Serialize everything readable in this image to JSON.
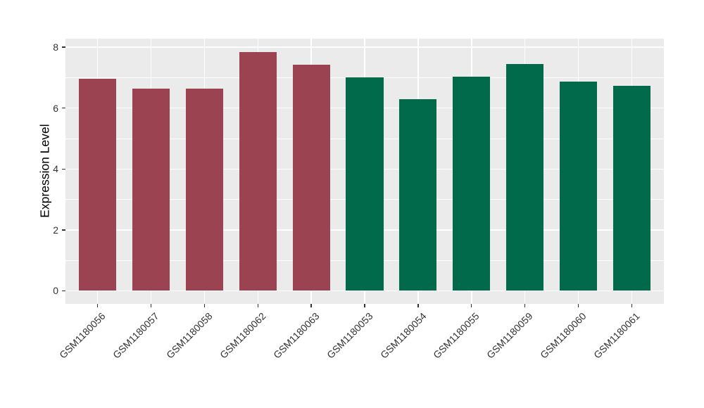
{
  "chart_data": {
    "type": "bar",
    "title": "",
    "xlabel": "",
    "ylabel": "Expression Level",
    "categories": [
      "GSM1180056",
      "GSM1180057",
      "GSM1180058",
      "GSM1180062",
      "GSM1180063",
      "GSM1180053",
      "GSM1180054",
      "GSM1180055",
      "GSM1180059",
      "GSM1180060",
      "GSM1180061"
    ],
    "values": [
      6.97,
      6.63,
      6.65,
      7.84,
      7.43,
      7.02,
      6.3,
      7.03,
      7.45,
      6.86,
      6.74
    ],
    "bar_colors": [
      "#9B4350",
      "#9B4350",
      "#9B4350",
      "#9B4350",
      "#9B4350",
      "#006A4B",
      "#006A4B",
      "#006A4B",
      "#006A4B",
      "#006A4B",
      "#006A4B"
    ],
    "groups": [
      {
        "color": "#9B4350",
        "samples": [
          "GSM1180056",
          "GSM1180057",
          "GSM1180058",
          "GSM1180062",
          "GSM1180063"
        ]
      },
      {
        "color": "#006A4B",
        "samples": [
          "GSM1180053",
          "GSM1180054",
          "GSM1180055",
          "GSM1180059",
          "GSM1180060",
          "GSM1180061"
        ]
      }
    ],
    "yticks": [
      0,
      2,
      4,
      6,
      8
    ],
    "minor_yticks": [
      1,
      3,
      5,
      7
    ],
    "ylim": [
      0,
      8
    ],
    "display_ylim": [
      -0.43,
      8.28
    ],
    "x_tick_rotation": 45,
    "bar_width_fraction": 0.7,
    "grid": true,
    "legend": "none",
    "panel_background": "#EBEBEB",
    "grid_color": "#FFFFFF",
    "axis_text_color": "#333333",
    "axis_title_color": "#000000"
  }
}
